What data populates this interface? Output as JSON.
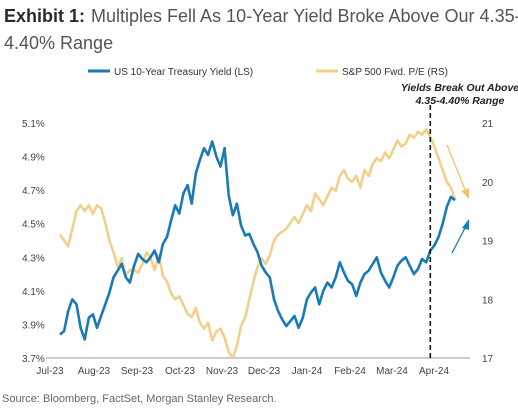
{
  "exhibit_label": "Exhibit 1:",
  "title_line1": "Multiples Fell As 10-Year Yield Broke Above Our 4.35-",
  "title_line2": "4.40% Range",
  "source": "Source: Bloomberg, FactSet, Morgan Stanley Research.",
  "colors": {
    "yield": "#1a7ab8",
    "pe": "#f0d08a",
    "arrow_pe": "#f2c46a",
    "arrow_yield": "#1a7ab8"
  },
  "chart_data": {
    "type": "line",
    "x": [
      "Jul-23",
      "Aug-23",
      "Sep-23",
      "Oct-23",
      "Nov-23",
      "Dec-23",
      "Jan-24",
      "Feb-24",
      "Mar-24",
      "Apr-24"
    ],
    "x_ticks": [
      "Jul-23",
      "Aug-23",
      "Sep-23",
      "Oct-23",
      "Nov-23",
      "Dec-23",
      "Jan-24",
      "Feb-24",
      "Mar-24",
      "Apr-24"
    ],
    "left_axis": {
      "ylim": [
        3.7,
        5.1
      ],
      "ticks": [
        "3.7%",
        "3.9%",
        "4.1%",
        "4.3%",
        "4.5%",
        "4.7%",
        "4.9%",
        "5.1%"
      ]
    },
    "right_axis": {
      "ylim": [
        17,
        21
      ],
      "ticks": [
        "17",
        "18",
        "19",
        "20",
        "21"
      ]
    },
    "legend_placement": "top",
    "annotation": {
      "line1": "Yields Break Out Above",
      "line2": "4.35-4.40% Range",
      "x": 9.0
    },
    "series": [
      {
        "name": "US 10-Year Treasury Yield (LS)",
        "axis": "left",
        "x": [
          0,
          0.1,
          0.2,
          0.3,
          0.4,
          0.5,
          0.6,
          0.7,
          0.8,
          0.9,
          1.0,
          1.1,
          1.2,
          1.3,
          1.4,
          1.5,
          1.6,
          1.7,
          1.8,
          1.9,
          2.0,
          2.1,
          2.2,
          2.3,
          2.4,
          2.5,
          2.6,
          2.7,
          2.8,
          2.9,
          3.0,
          3.1,
          3.2,
          3.3,
          3.4,
          3.5,
          3.6,
          3.7,
          3.8,
          3.9,
          4.0,
          4.1,
          4.2,
          4.3,
          4.4,
          4.5,
          4.6,
          4.7,
          4.8,
          4.9,
          5.0,
          5.1,
          5.2,
          5.3,
          5.4,
          5.5,
          5.6,
          5.7,
          5.8,
          5.9,
          6.0,
          6.1,
          6.2,
          6.3,
          6.4,
          6.5,
          6.6,
          6.7,
          6.8,
          6.9,
          7.0,
          7.1,
          7.2,
          7.3,
          7.4,
          7.5,
          7.6,
          7.7,
          7.8,
          7.9,
          8.0,
          8.1,
          8.2,
          8.3,
          8.4,
          8.5,
          8.6,
          8.7,
          8.8,
          8.9,
          9.0,
          9.1,
          9.2,
          9.3,
          9.4,
          9.5,
          9.6
        ],
        "values": [
          3.84,
          3.86,
          3.98,
          4.05,
          4.02,
          3.88,
          3.81,
          3.94,
          3.96,
          3.88,
          3.95,
          4.02,
          4.09,
          4.18,
          4.22,
          4.26,
          4.18,
          4.15,
          4.25,
          4.32,
          4.29,
          4.27,
          4.3,
          4.34,
          4.27,
          4.38,
          4.42,
          4.52,
          4.61,
          4.56,
          4.68,
          4.73,
          4.62,
          4.8,
          4.88,
          4.95,
          4.91,
          4.99,
          4.9,
          4.84,
          4.95,
          4.67,
          4.55,
          4.62,
          4.49,
          4.43,
          4.44,
          4.38,
          4.33,
          4.25,
          4.21,
          4.18,
          4.05,
          3.98,
          3.93,
          3.89,
          3.92,
          3.95,
          3.88,
          3.94,
          4.05,
          4.09,
          4.12,
          4.02,
          4.1,
          4.15,
          4.12,
          4.18,
          4.27,
          4.21,
          4.16,
          4.14,
          4.07,
          4.15,
          4.2,
          4.22,
          4.26,
          4.3,
          4.21,
          4.16,
          4.12,
          4.18,
          4.25,
          4.28,
          4.3,
          4.25,
          4.2,
          4.23,
          4.29,
          4.27,
          4.34,
          4.37,
          4.42,
          4.5,
          4.6,
          4.66,
          4.64
        ]
      },
      {
        "name": "S&P 500 Fwd. P/E (RS)",
        "axis": "right",
        "x": [
          0,
          0.1,
          0.2,
          0.3,
          0.4,
          0.5,
          0.6,
          0.7,
          0.8,
          0.9,
          1.0,
          1.1,
          1.2,
          1.3,
          1.4,
          1.5,
          1.6,
          1.7,
          1.8,
          1.9,
          2.0,
          2.1,
          2.2,
          2.3,
          2.4,
          2.5,
          2.6,
          2.7,
          2.8,
          2.9,
          3.0,
          3.1,
          3.2,
          3.3,
          3.4,
          3.5,
          3.6,
          3.7,
          3.8,
          3.9,
          4.0,
          4.1,
          4.2,
          4.3,
          4.4,
          4.5,
          4.6,
          4.7,
          4.8,
          4.9,
          5.0,
          5.1,
          5.2,
          5.3,
          5.4,
          5.5,
          5.6,
          5.7,
          5.8,
          5.9,
          6.0,
          6.1,
          6.2,
          6.3,
          6.4,
          6.5,
          6.6,
          6.7,
          6.8,
          6.9,
          7.0,
          7.1,
          7.2,
          7.3,
          7.4,
          7.5,
          7.6,
          7.7,
          7.8,
          7.9,
          8.0,
          8.1,
          8.2,
          8.3,
          8.4,
          8.5,
          8.6,
          8.7,
          8.8,
          8.9,
          9.0,
          9.1,
          9.2,
          9.3,
          9.4,
          9.5,
          9.6
        ],
        "values": [
          19.1,
          19.0,
          18.9,
          19.2,
          19.5,
          19.6,
          19.5,
          19.6,
          19.45,
          19.6,
          19.55,
          19.3,
          19.0,
          18.8,
          18.55,
          18.7,
          18.4,
          18.5,
          18.5,
          18.45,
          18.6,
          18.8,
          18.7,
          18.5,
          18.75,
          18.4,
          18.3,
          18.1,
          18.0,
          18.05,
          17.9,
          17.75,
          17.7,
          17.85,
          17.6,
          17.5,
          17.6,
          17.3,
          17.45,
          17.5,
          17.35,
          17.1,
          17.0,
          17.2,
          17.55,
          17.7,
          18.0,
          18.3,
          18.55,
          18.7,
          18.6,
          18.75,
          19.0,
          19.1,
          19.15,
          19.2,
          19.3,
          19.4,
          19.3,
          19.45,
          19.6,
          19.5,
          19.8,
          19.7,
          19.6,
          19.75,
          19.9,
          19.85,
          20.1,
          20.2,
          20.05,
          20.0,
          20.1,
          19.9,
          20.2,
          20.1,
          20.3,
          20.4,
          20.35,
          20.5,
          20.4,
          20.55,
          20.7,
          20.6,
          20.65,
          20.8,
          20.75,
          20.85,
          20.8,
          20.9,
          20.75,
          20.6,
          20.4,
          20.2,
          20.0,
          19.9,
          19.7
        ]
      }
    ]
  }
}
